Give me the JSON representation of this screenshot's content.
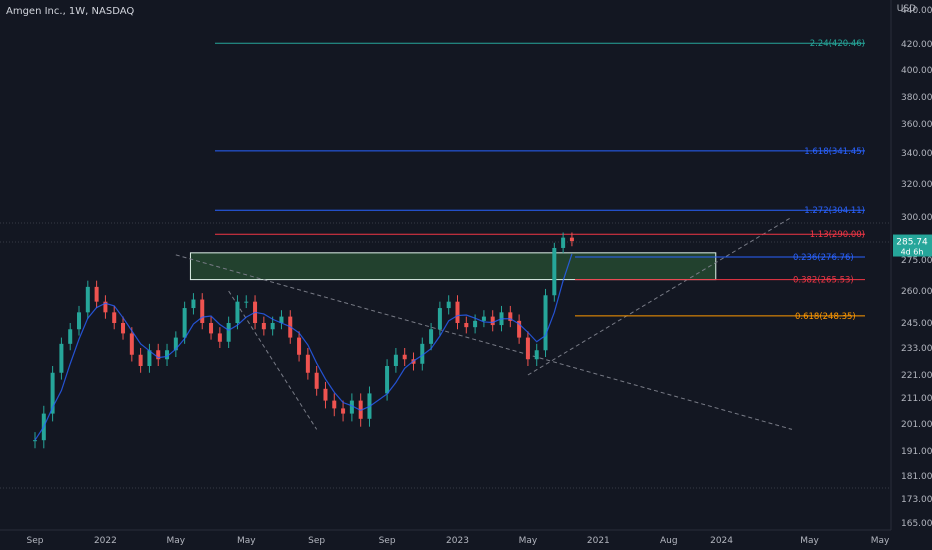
{
  "header": {
    "title": "Amgen Inc., 1W, NASDAQ",
    "currency": "USD"
  },
  "colors": {
    "bg": "#131722",
    "up": "#26a69a",
    "down": "#ef5350",
    "ma": "#2962ff",
    "zone": "#4caf50",
    "price_tag": "#26a69a"
  },
  "chart_data": {
    "type": "candlestick",
    "price_scale_labels": [
      "440.00",
      "420.00",
      "400.00",
      "380.00",
      "360.00",
      "340.00",
      "320.00",
      "300.00",
      "285.74",
      "275.00",
      "260.00",
      "245.00",
      "233.00",
      "221.00",
      "211.00",
      "201.00",
      "191.00",
      "181.00",
      "173.00",
      "165.00"
    ],
    "time_labels": [
      "May",
      "Sep",
      "2021",
      "May",
      "Sep",
      "2022",
      "May",
      "Sep",
      "2023",
      "May",
      "Aug",
      "2024",
      "May"
    ],
    "last_price": "285.74",
    "countdown": "4d 6h",
    "fib_levels": [
      {
        "label": "2.24(420.46)",
        "value": 420.46,
        "color": "#26a69a"
      },
      {
        "label": "1.618(341.45)",
        "value": 341.45,
        "color": "#2962ff"
      },
      {
        "label": "1.272(304.11)",
        "value": 304.11,
        "color": "#2962ff"
      },
      {
        "label": "1.13(290.00)",
        "value": 290.0,
        "color": "#f23645"
      },
      {
        "label": "0.236(276.76)",
        "value": 276.76,
        "color": "#2962ff"
      },
      {
        "label": "0.382(265.53)",
        "value": 265.53,
        "color": "#f23645"
      },
      {
        "label": "0.618(248.35)",
        "value": 248.35,
        "color": "#ff9800"
      }
    ],
    "zone": {
      "from": "2021-02",
      "to": "2023-10",
      "low": 266,
      "high": 278
    },
    "trendlines": [
      {
        "from": [
          "2021-01",
          278
        ],
        "to": [
          "2023-12",
          199
        ],
        "style": "dashed"
      },
      {
        "from": [
          "2021-04",
          260
        ],
        "to": [
          "2021-09",
          199
        ],
        "style": "dashed"
      },
      {
        "from": [
          "2022-09",
          221
        ],
        "to": [
          "2023-12",
          300
        ],
        "style": "dashed"
      }
    ]
  }
}
